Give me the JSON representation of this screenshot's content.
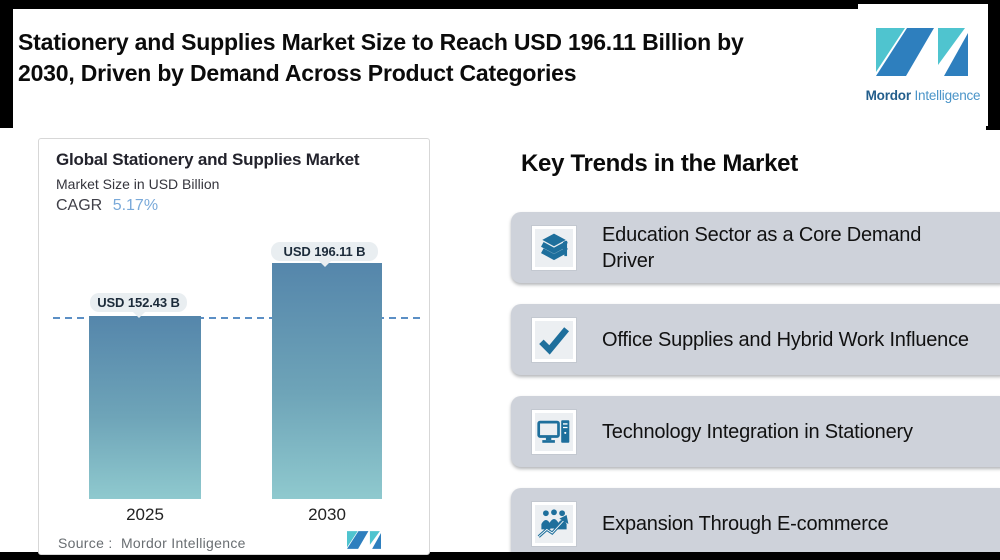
{
  "header": {
    "title_line1": "Stationery and Supplies Market Size to Reach USD 196.11 Billion by",
    "title_line2": "2030, Driven by Demand Across Product Categories"
  },
  "logo": {
    "brand_bold": "Mordor",
    "brand_light": "Intelligence",
    "teal": "#4fc4cf",
    "blue": "#2e7fbe"
  },
  "chart_card": {
    "title": "Global Stationery and Supplies Market",
    "subtitle": "Market Size in USD Billion",
    "cagr_label": "CAGR",
    "cagr_value": "5.17%",
    "source_label": "Source :",
    "source_value": "Mordor Intelligence"
  },
  "chart_data": {
    "type": "bar",
    "title": "Global Stationery and Supplies Market",
    "subtitle": "Market Size in USD Billion",
    "unit": "USD Billion",
    "cagr_percent": 5.17,
    "categories": [
      "2025",
      "2030"
    ],
    "values": [
      152.43,
      196.11
    ],
    "value_labels": [
      "USD 152.43 B",
      "USD 196.11 B"
    ],
    "ylim": [
      0,
      196.11
    ],
    "grid": false,
    "legend": false,
    "reference_line": {
      "value": 152.43,
      "style": "dashed",
      "color": "#5b8fc5"
    },
    "bar_gradient_top": "#5586ab",
    "bar_gradient_bottom": "#8fc9ce"
  },
  "key_trends": {
    "title": "Key Trends in the Market",
    "row_bg": "#ced2da",
    "icon_color": "#1e6f9c",
    "items": [
      {
        "icon": "books-stack-icon",
        "label": "Education Sector as a Core Demand Driver"
      },
      {
        "icon": "checkmark-icon",
        "label": "Office Supplies and Hybrid Work Influence"
      },
      {
        "icon": "computer-icon",
        "label": "Technology Integration in Stationery"
      },
      {
        "icon": "people-growth-icon",
        "label": "Expansion Through E-commerce"
      }
    ]
  }
}
